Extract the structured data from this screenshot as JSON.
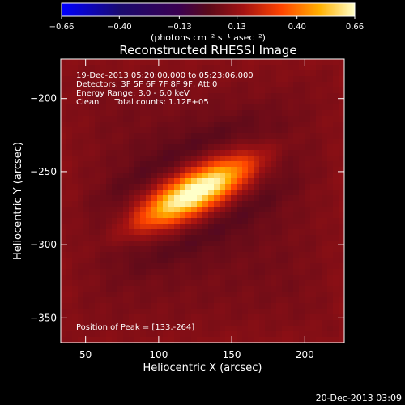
{
  "chart_data": {
    "type": "heatmap",
    "title": "Reconstructed RHESSI Image",
    "xlabel": "Heliocentric X (arcsec)",
    "ylabel": "Heliocentric Y (arcsec)",
    "xlim": [
      33,
      227
    ],
    "ylim": [
      -367,
      -173
    ],
    "x_ticks": [
      50,
      100,
      150,
      200
    ],
    "y_ticks": [
      -200,
      -250,
      -300,
      -350
    ],
    "x_tick_labels": [
      "50",
      "100",
      "150",
      "200"
    ],
    "y_tick_labels": [
      "−200",
      "−250",
      "−300",
      "−350"
    ],
    "colorbar": {
      "range": [
        -0.66,
        0.66
      ],
      "ticks": [
        -0.66,
        -0.4,
        -0.13,
        0.13,
        0.4,
        0.66
      ],
      "tick_labels": [
        "−0.66",
        "−0.40",
        "−0.13",
        "0.13",
        "0.40",
        "0.66"
      ],
      "unit_label": "(photons cm⁻² s⁻¹ asec⁻²)"
    },
    "info_lines": [
      "19-Dec-2013 05:20:00.000 to 05:23:06.000",
      "Detectors: 3F 5F 6F 7F 8F 9F, Att 0",
      "Energy Range: 3.0 - 6.0 keV",
      "Clean      Total counts: 1.12E+05"
    ],
    "peak_label": "Position of Peak = [133,-264]",
    "peak": [
      133,
      -264
    ],
    "source": {
      "center": [
        125,
        -264
      ],
      "angle_deg": 28,
      "sigma_major_arcsec": 32,
      "sigma_minor_arcsec": 10,
      "peak_value": 0.66
    },
    "background_level": 0.05,
    "timestamp": "20-Dec-2013 03:09"
  }
}
